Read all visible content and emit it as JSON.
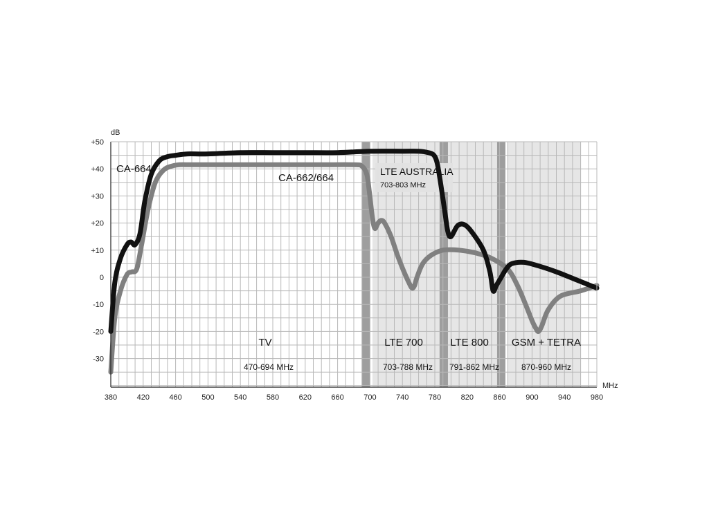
{
  "chart_data": {
    "type": "line",
    "xunit": "MHz",
    "yunit": "dB",
    "xlim": [
      380,
      980
    ],
    "ylim": [
      -40,
      50
    ],
    "x_ticks": [
      "380",
      "420",
      "460",
      "500",
      "540",
      "580",
      "620",
      "660",
      "700",
      "740",
      "780",
      "820",
      "860",
      "900",
      "940",
      "980"
    ],
    "y_ticks": [
      "+50",
      "+40",
      "+30",
      "+20",
      "+10",
      "0",
      "-10",
      "-20",
      "-30"
    ],
    "grid": true,
    "series": [
      {
        "name": "CA-664",
        "color": "#111111",
        "x": [
          380,
          385,
          392,
          400,
          405,
          410,
          416,
          422,
          430,
          440,
          450,
          460,
          475,
          500,
          540,
          580,
          620,
          660,
          700,
          740,
          760,
          772,
          779,
          783,
          787,
          792,
          796,
          800,
          808,
          816,
          825,
          840,
          848,
          852,
          856,
          862,
          868,
          875,
          890,
          910,
          930,
          955,
          980
        ],
        "y": [
          -20,
          -2,
          7,
          12,
          13,
          12,
          16,
          28,
          38,
          43,
          44.5,
          45,
          45.5,
          45.5,
          46,
          46,
          46,
          46,
          46.5,
          46.5,
          46.5,
          46,
          45,
          42,
          35,
          25,
          17,
          15,
          19,
          19.5,
          17,
          10,
          2,
          -5,
          -3,
          0,
          3,
          5,
          5.5,
          4,
          2,
          -1,
          -4
        ]
      },
      {
        "name": "CA-662/664",
        "color": "#808080",
        "x": [
          380,
          385,
          392,
          400,
          406,
          412,
          418,
          426,
          435,
          445,
          455,
          465,
          480,
          520,
          560,
          600,
          640,
          680,
          690,
          696,
          699,
          703,
          706,
          710,
          714,
          718,
          726,
          734,
          742,
          748,
          752,
          755,
          758,
          765,
          775,
          790,
          810,
          830,
          850,
          870,
          882,
          892,
          900,
          905,
          908,
          912,
          920,
          935,
          960,
          980
        ],
        "y": [
          -35,
          -15,
          -5,
          1,
          2,
          3,
          12,
          25,
          35,
          39.5,
          41,
          41.5,
          41.5,
          41.5,
          41.5,
          41.5,
          41.5,
          41.5,
          41,
          38,
          32,
          22,
          18,
          20,
          21,
          20,
          15,
          8,
          2,
          -2,
          -4,
          -3,
          0,
          5,
          8,
          10,
          10,
          9,
          7,
          3,
          -3,
          -10,
          -16,
          -19,
          -20,
          -18,
          -12,
          -7,
          -5,
          -3
        ]
      }
    ],
    "bands": [
      {
        "name": "TV",
        "range": "470-694 MHz",
        "start": 470,
        "end": 694,
        "shaded": false
      },
      {
        "name": "LTE 700",
        "range": "703-788 MHz",
        "start": 703,
        "end": 788,
        "shaded": true
      },
      {
        "name": "LTE 800",
        "range": "791-862 MHz",
        "start": 791,
        "end": 862,
        "shaded": true
      },
      {
        "name": "GSM + TETRA",
        "range": "870-960 MHz",
        "start": 870,
        "end": 960,
        "shaded": true
      }
    ],
    "band_separators": [
      695,
      791,
      862
    ],
    "overlay_band": {
      "name": "LTE AUSTRALIA",
      "range": "703-803 MHz",
      "start": 703,
      "end": 803
    }
  },
  "colors": {
    "band_fill": "#e6e6e6",
    "separator": "#9e9e9e",
    "overlay_fill": "#e2e2e2"
  }
}
